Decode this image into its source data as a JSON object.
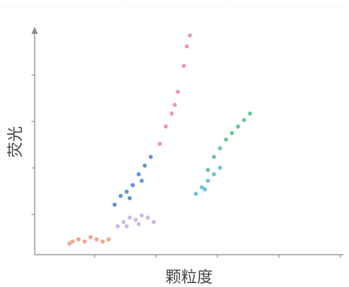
{
  "chart_data": {
    "type": "scatter",
    "xlabel": "颗粒度",
    "ylabel": "荧光",
    "xlim": [
      0,
      100
    ],
    "ylim": [
      0,
      100
    ],
    "grid": false,
    "series": [
      {
        "color": "#f49a84",
        "values": [
          [
            10,
            4
          ],
          [
            11,
            5
          ],
          [
            13,
            6
          ],
          [
            15,
            5
          ],
          [
            17,
            7
          ],
          [
            19,
            6
          ],
          [
            21,
            5
          ],
          [
            23,
            6
          ]
        ]
      },
      {
        "color": "#c7aee8",
        "values": [
          [
            26,
            12
          ],
          [
            28,
            14
          ],
          [
            30,
            16
          ],
          [
            32,
            15
          ],
          [
            34,
            17
          ],
          [
            36,
            16
          ],
          [
            38,
            14
          ],
          [
            29,
            12
          ],
          [
            33,
            13
          ]
        ]
      },
      {
        "color": "#4f86d6",
        "values": [
          [
            25,
            22
          ],
          [
            27,
            26
          ],
          [
            29,
            28
          ],
          [
            31,
            31
          ],
          [
            33,
            36
          ],
          [
            35,
            40
          ],
          [
            37,
            44
          ],
          [
            30,
            25
          ],
          [
            34,
            33
          ]
        ]
      },
      {
        "color": "#f28aa0",
        "values": [
          [
            40,
            50
          ],
          [
            42,
            58
          ],
          [
            44,
            64
          ],
          [
            46,
            74
          ],
          [
            48,
            86
          ],
          [
            49,
            95
          ],
          [
            50,
            100
          ],
          [
            45,
            68
          ]
        ]
      },
      {
        "color": "#5dc08a",
        "values": [
          [
            56,
            38
          ],
          [
            58,
            44
          ],
          [
            60,
            48
          ],
          [
            62,
            52
          ],
          [
            64,
            55
          ],
          [
            66,
            58
          ],
          [
            68,
            61
          ],
          [
            70,
            64
          ]
        ]
      },
      {
        "color": "#58bde0",
        "values": [
          [
            52,
            27
          ],
          [
            54,
            30
          ],
          [
            56,
            33
          ],
          [
            58,
            36
          ],
          [
            60,
            39
          ],
          [
            55,
            29
          ]
        ]
      }
    ]
  }
}
